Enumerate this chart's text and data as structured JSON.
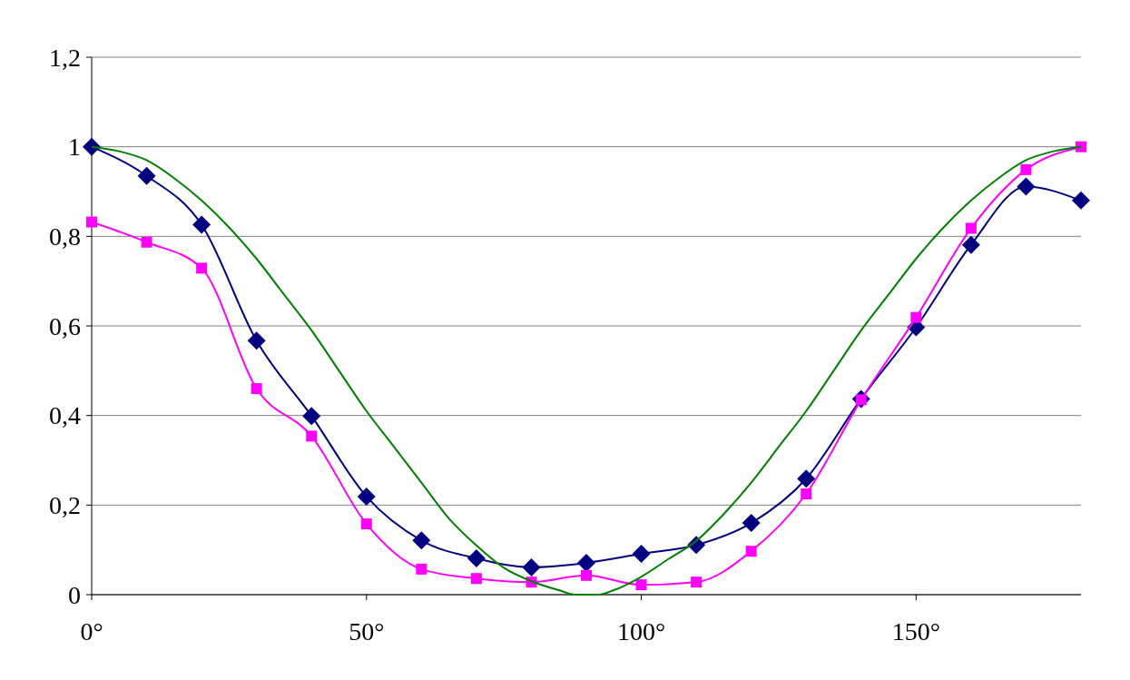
{
  "chart_data": {
    "type": "line",
    "x": [
      0,
      10,
      20,
      30,
      40,
      50,
      60,
      70,
      80,
      90,
      100,
      110,
      120,
      130,
      140,
      150,
      160,
      170,
      180
    ],
    "series": [
      {
        "color": "#000080",
        "marker": "diamond",
        "values": [
          1.0,
          0.935,
          0.826,
          0.567,
          0.399,
          0.219,
          0.121,
          0.081,
          0.061,
          0.071,
          0.091,
          0.111,
          0.16,
          0.259,
          0.437,
          0.597,
          0.781,
          0.911,
          0.88
        ]
      },
      {
        "color": "#ff00ff",
        "marker": "square",
        "values": [
          0.832,
          0.787,
          0.729,
          0.46,
          0.354,
          0.158,
          0.057,
          0.036,
          0.028,
          0.043,
          0.022,
          0.028,
          0.097,
          0.225,
          0.435,
          0.619,
          0.818,
          0.949,
          1.0
        ]
      },
      {
        "color": "#008000",
        "marker": "none",
        "x": [
          0,
          5,
          10,
          15,
          20,
          25,
          30,
          35,
          40,
          45,
          50,
          55,
          60,
          65,
          70,
          75,
          80,
          85,
          88,
          92,
          95,
          100,
          105,
          110,
          115,
          120,
          125,
          130,
          135,
          140,
          145,
          150,
          155,
          160,
          165,
          170,
          175,
          180
        ],
        "values": [
          1.0,
          0.99,
          0.97,
          0.93,
          0.88,
          0.82,
          0.75,
          0.67,
          0.59,
          0.5,
          0.41,
          0.33,
          0.25,
          0.17,
          0.11,
          0.06,
          0.03,
          0.01,
          0.0,
          0.0,
          0.01,
          0.04,
          0.08,
          0.12,
          0.18,
          0.25,
          0.33,
          0.41,
          0.5,
          0.59,
          0.67,
          0.75,
          0.82,
          0.88,
          0.93,
          0.97,
          0.99,
          1.0
        ]
      }
    ],
    "xlim": [
      0,
      180
    ],
    "xticks": [
      {
        "value": 0,
        "label": "0°"
      },
      {
        "value": 50,
        "label": "50°"
      },
      {
        "value": 100,
        "label": "100°"
      },
      {
        "value": 150,
        "label": "150°"
      }
    ],
    "ylim": [
      0,
      1.2
    ],
    "yticks": [
      0,
      {
        "value": 0.2,
        "label": "0,2"
      },
      {
        "value": 0.4,
        "label": "0,4"
      },
      {
        "value": 0.6,
        "label": "0,6"
      },
      {
        "value": 0.8,
        "label": "0,8"
      },
      1,
      {
        "value": 1.2,
        "label": "1,2"
      }
    ],
    "grid": "y",
    "line_style": "solid"
  }
}
